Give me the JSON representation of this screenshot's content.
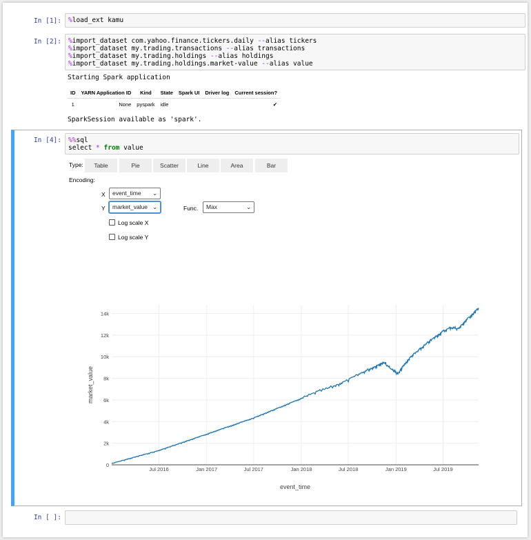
{
  "cells": {
    "c1": {
      "prompt": "In [1]:",
      "code_magic": "%",
      "code_rest": "load_ext kamu"
    },
    "c2": {
      "prompt": "In [2]:",
      "lines": [
        {
          "magic": "%",
          "a": "import_dataset com.yahoo.finance.tickers.daily ",
          "op": "--",
          "b": "alias tickers"
        },
        {
          "magic": "%",
          "a": "import_dataset my.trading.transactions ",
          "op": "--",
          "b": "alias transactions"
        },
        {
          "magic": "%",
          "a": "import_dataset my.trading.holdings ",
          "op": "--",
          "b": "alias holdings"
        },
        {
          "magic": "%",
          "a": "import_dataset my.trading.holdings.market-value ",
          "op": "--",
          "b": "alias value"
        }
      ],
      "output_start": "Starting Spark application",
      "table_headers": [
        "ID",
        "YARN Application ID",
        "Kind",
        "State",
        "Spark UI",
        "Driver log",
        "Current session?"
      ],
      "table_row": [
        "1",
        "None",
        "pyspark",
        "idle",
        "",
        "",
        "✔"
      ],
      "output_end": "SparkSession available as 'spark'."
    },
    "c4": {
      "prompt": "In [4]:",
      "line1_magic": "%%",
      "line1_rest": "sql",
      "line2_a": "select ",
      "line2_star": "*",
      "line2_kw": " from",
      "line2_b": " value"
    },
    "c5": {
      "prompt": "In [ ]:"
    }
  },
  "widget": {
    "type_label": "Type:",
    "types": [
      "Table",
      "Pie",
      "Scatter",
      "Line",
      "Area",
      "Bar"
    ],
    "encoding_label": "Encoding:",
    "x_label": "X",
    "x_value": "event_time",
    "y_label": "Y",
    "y_value": "market_value",
    "func_label": "Func.",
    "func_value": "Max",
    "log_x": "Log scale X",
    "log_y": "Log scale Y"
  },
  "chart_data": {
    "type": "line",
    "xlabel": "event_time",
    "ylabel": "market_value",
    "x_ticks": [
      "Jul 2016",
      "Jan 2017",
      "Jul 2017",
      "Jan 2018",
      "Jul 2018",
      "Jan 2019",
      "Jul 2019"
    ],
    "y_ticks": [
      "0",
      "2k",
      "4k",
      "6k",
      "8k",
      "10k",
      "12k",
      "14k"
    ],
    "ylim": [
      0,
      14800
    ],
    "xlim": [
      "2016-01-01",
      "2019-11-15"
    ],
    "color": "#1f77b4",
    "series": [
      {
        "x": [
          "2016-01-01",
          "2016-03-01",
          "2016-05-01",
          "2016-07-01",
          "2016-09-01",
          "2016-11-01",
          "2017-01-01",
          "2017-03-01",
          "2017-05-01",
          "2017-07-01",
          "2017-09-01",
          "2017-11-01",
          "2018-01-01",
          "2018-03-01",
          "2018-05-01",
          "2018-07-01",
          "2018-09-01",
          "2018-10-15",
          "2018-11-15",
          "2018-12-20",
          "2019-01-10",
          "2019-02-01",
          "2019-03-01",
          "2019-04-01",
          "2019-05-01",
          "2019-06-01",
          "2019-07-01",
          "2019-08-01",
          "2019-09-01",
          "2019-10-01",
          "2019-11-01",
          "2019-11-15"
        ],
        "values": [
          100,
          500,
          900,
          1300,
          1800,
          2300,
          2800,
          3300,
          3800,
          4300,
          4900,
          5500,
          6100,
          6700,
          7200,
          7800,
          8600,
          9100,
          9500,
          8800,
          8400,
          9200,
          10000,
          10600,
          11200,
          11800,
          12300,
          12700,
          12600,
          13400,
          14100,
          14500
        ]
      }
    ]
  }
}
